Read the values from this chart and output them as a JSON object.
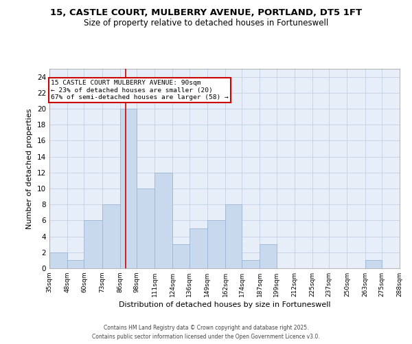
{
  "title": "15, CASTLE COURT, MULBERRY AVENUE, PORTLAND, DT5 1FT",
  "subtitle": "Size of property relative to detached houses in Fortuneswell",
  "xlabel": "Distribution of detached houses by size in Fortuneswell",
  "ylabel": "Number of detached properties",
  "bar_color": "#c8d9ee",
  "bar_edge_color": "#9ab5d5",
  "grid_color": "#c8d5e8",
  "background_color": "#e8eef8",
  "plot_bg_color": "#e8eef8",
  "annotation_box_color": "#cc0000",
  "annotation_line_color": "#cc0000",
  "property_size": 90,
  "annotation_text_line1": "15 CASTLE COURT MULBERRY AVENUE: 90sqm",
  "annotation_text_line2": "← 23% of detached houses are smaller (20)",
  "annotation_text_line3": "67% of semi-detached houses are larger (58) →",
  "bin_edges": [
    35,
    48,
    60,
    73,
    86,
    98,
    111,
    124,
    136,
    149,
    162,
    174,
    187,
    199,
    212,
    225,
    237,
    250,
    263,
    275,
    288
  ],
  "bin_labels": [
    "35sqm",
    "48sqm",
    "60sqm",
    "73sqm",
    "86sqm",
    "98sqm",
    "111sqm",
    "124sqm",
    "136sqm",
    "149sqm",
    "162sqm",
    "174sqm",
    "187sqm",
    "199sqm",
    "212sqm",
    "225sqm",
    "237sqm",
    "250sqm",
    "263sqm",
    "275sqm",
    "288sqm"
  ],
  "counts": [
    2,
    1,
    6,
    8,
    20,
    10,
    12,
    3,
    5,
    6,
    8,
    1,
    3,
    0,
    0,
    0,
    0,
    0,
    1,
    0
  ],
  "ylim": [
    0,
    25
  ],
  "yticks": [
    0,
    2,
    4,
    6,
    8,
    10,
    12,
    14,
    16,
    18,
    20,
    22,
    24
  ],
  "footer1": "Contains HM Land Registry data © Crown copyright and database right 2025.",
  "footer2": "Contains public sector information licensed under the Open Government Licence v3.0."
}
